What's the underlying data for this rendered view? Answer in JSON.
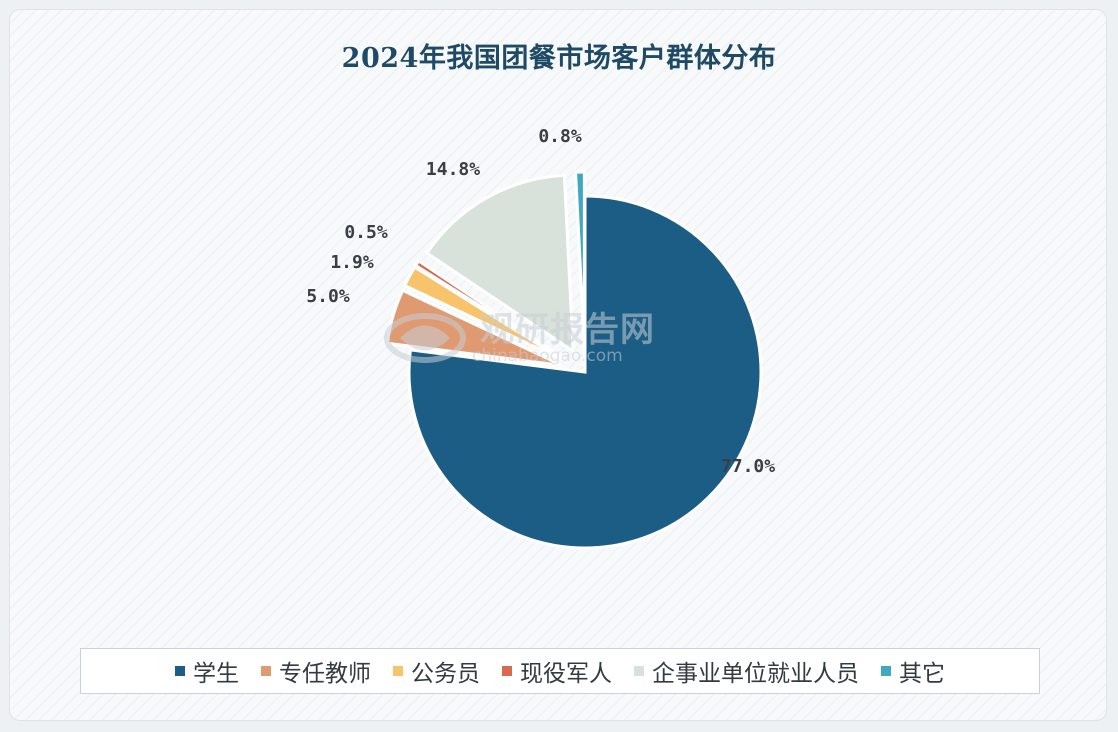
{
  "chart_data": {
    "type": "pie",
    "title": "2024年我国团餐市场客户群体分布",
    "legend_position": "bottom",
    "slices": [
      {
        "name": "学生",
        "value": 77.0,
        "label": "77.0%",
        "color": "#1c5d85"
      },
      {
        "name": "专任教师",
        "value": 5.0,
        "label": "5.0%",
        "color": "#df9a72"
      },
      {
        "name": "公务员",
        "value": 1.9,
        "label": "1.9%",
        "color": "#f7c46c"
      },
      {
        "name": "现役军人",
        "value": 0.5,
        "label": "0.5%",
        "color": "#d9694f"
      },
      {
        "name": "企事业单位就业人员",
        "value": 14.8,
        "label": "14.8%",
        "color": "#d8e1da"
      },
      {
        "name": "其它",
        "value": 0.8,
        "label": "0.8%",
        "color": "#3fa9c2"
      }
    ]
  },
  "watermark": {
    "brand": "观研报告网",
    "url": "chinabaogao.com"
  }
}
